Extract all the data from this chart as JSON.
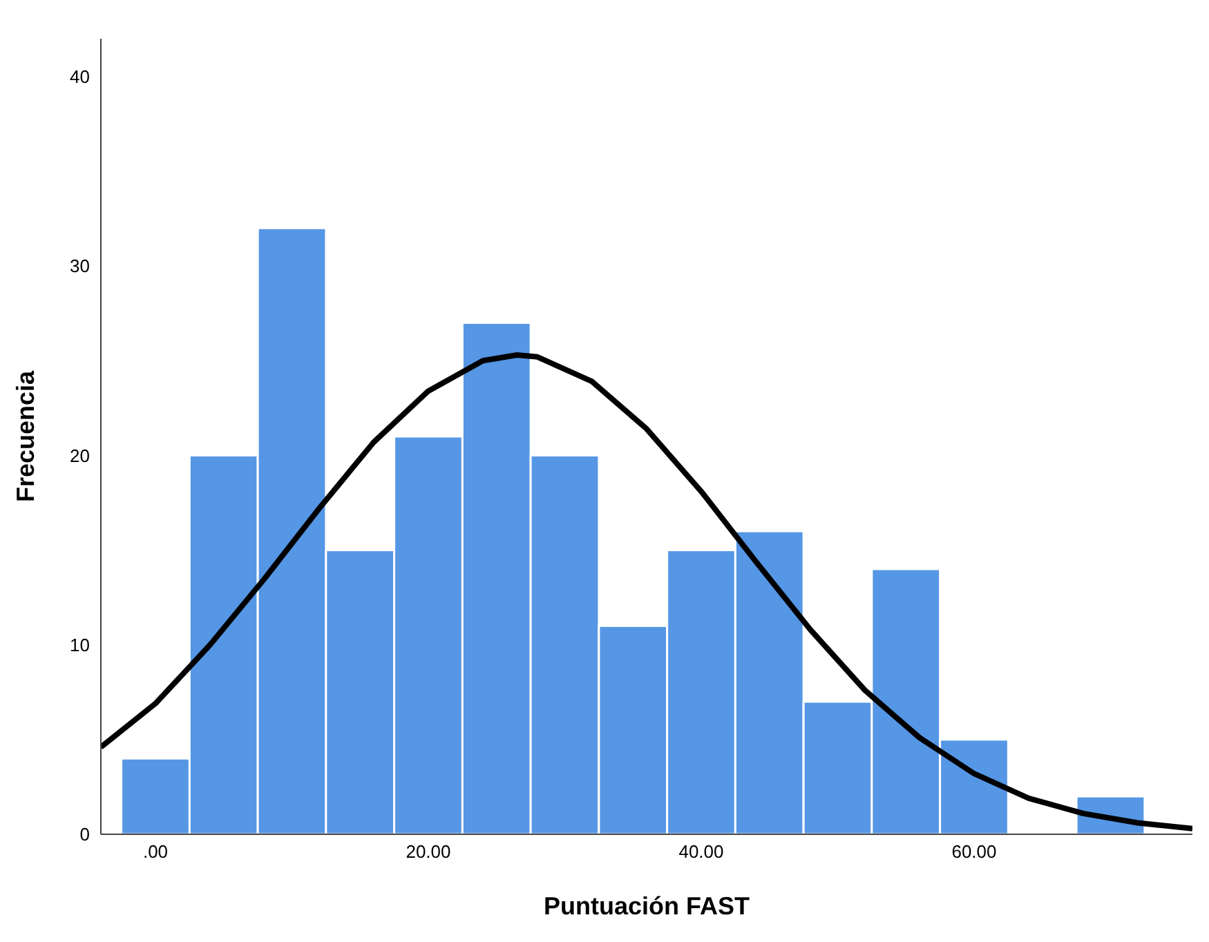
{
  "chart_data": {
    "type": "histogram",
    "xlabel": "Puntuación FAST",
    "ylabel": "Frecuencia",
    "bins": [
      -2.5,
      2.5,
      7.5,
      12.5,
      17.5,
      22.5,
      27.5,
      32.5,
      37.5,
      42.5,
      47.5,
      52.5,
      57.5,
      62.5,
      67.5,
      72.5
    ],
    "values": [
      4,
      20,
      32,
      15,
      21,
      27,
      20,
      11,
      15,
      16,
      7,
      14,
      5,
      0,
      2
    ],
    "color": "#5596e5",
    "series": [
      {
        "type": "line",
        "color": "#000000",
        "x": [
          -4,
          0,
          4,
          8,
          12,
          16,
          20,
          24,
          26.5,
          28,
          32,
          36,
          40,
          44,
          48,
          52,
          56,
          60,
          64,
          68,
          72,
          76
        ],
        "values": [
          4.6,
          6.9,
          10.0,
          13.5,
          17.2,
          20.7,
          23.4,
          25.0,
          25.3,
          25.2,
          23.9,
          21.4,
          18.1,
          14.4,
          10.8,
          7.6,
          5.1,
          3.2,
          1.9,
          1.1,
          0.6,
          0.3
        ]
      }
    ],
    "xlim": [
      -4,
      76
    ],
    "xticks": [
      {
        "value": 0,
        "label": ".00"
      },
      {
        "value": 20,
        "label": "20.00"
      },
      {
        "value": 40,
        "label": "40.00"
      },
      {
        "value": 60,
        "label": "60.00"
      }
    ],
    "ylim": [
      0,
      42
    ],
    "yticks": [
      0,
      10,
      20,
      30,
      40
    ],
    "marker": "none",
    "line_style": "solid"
  }
}
